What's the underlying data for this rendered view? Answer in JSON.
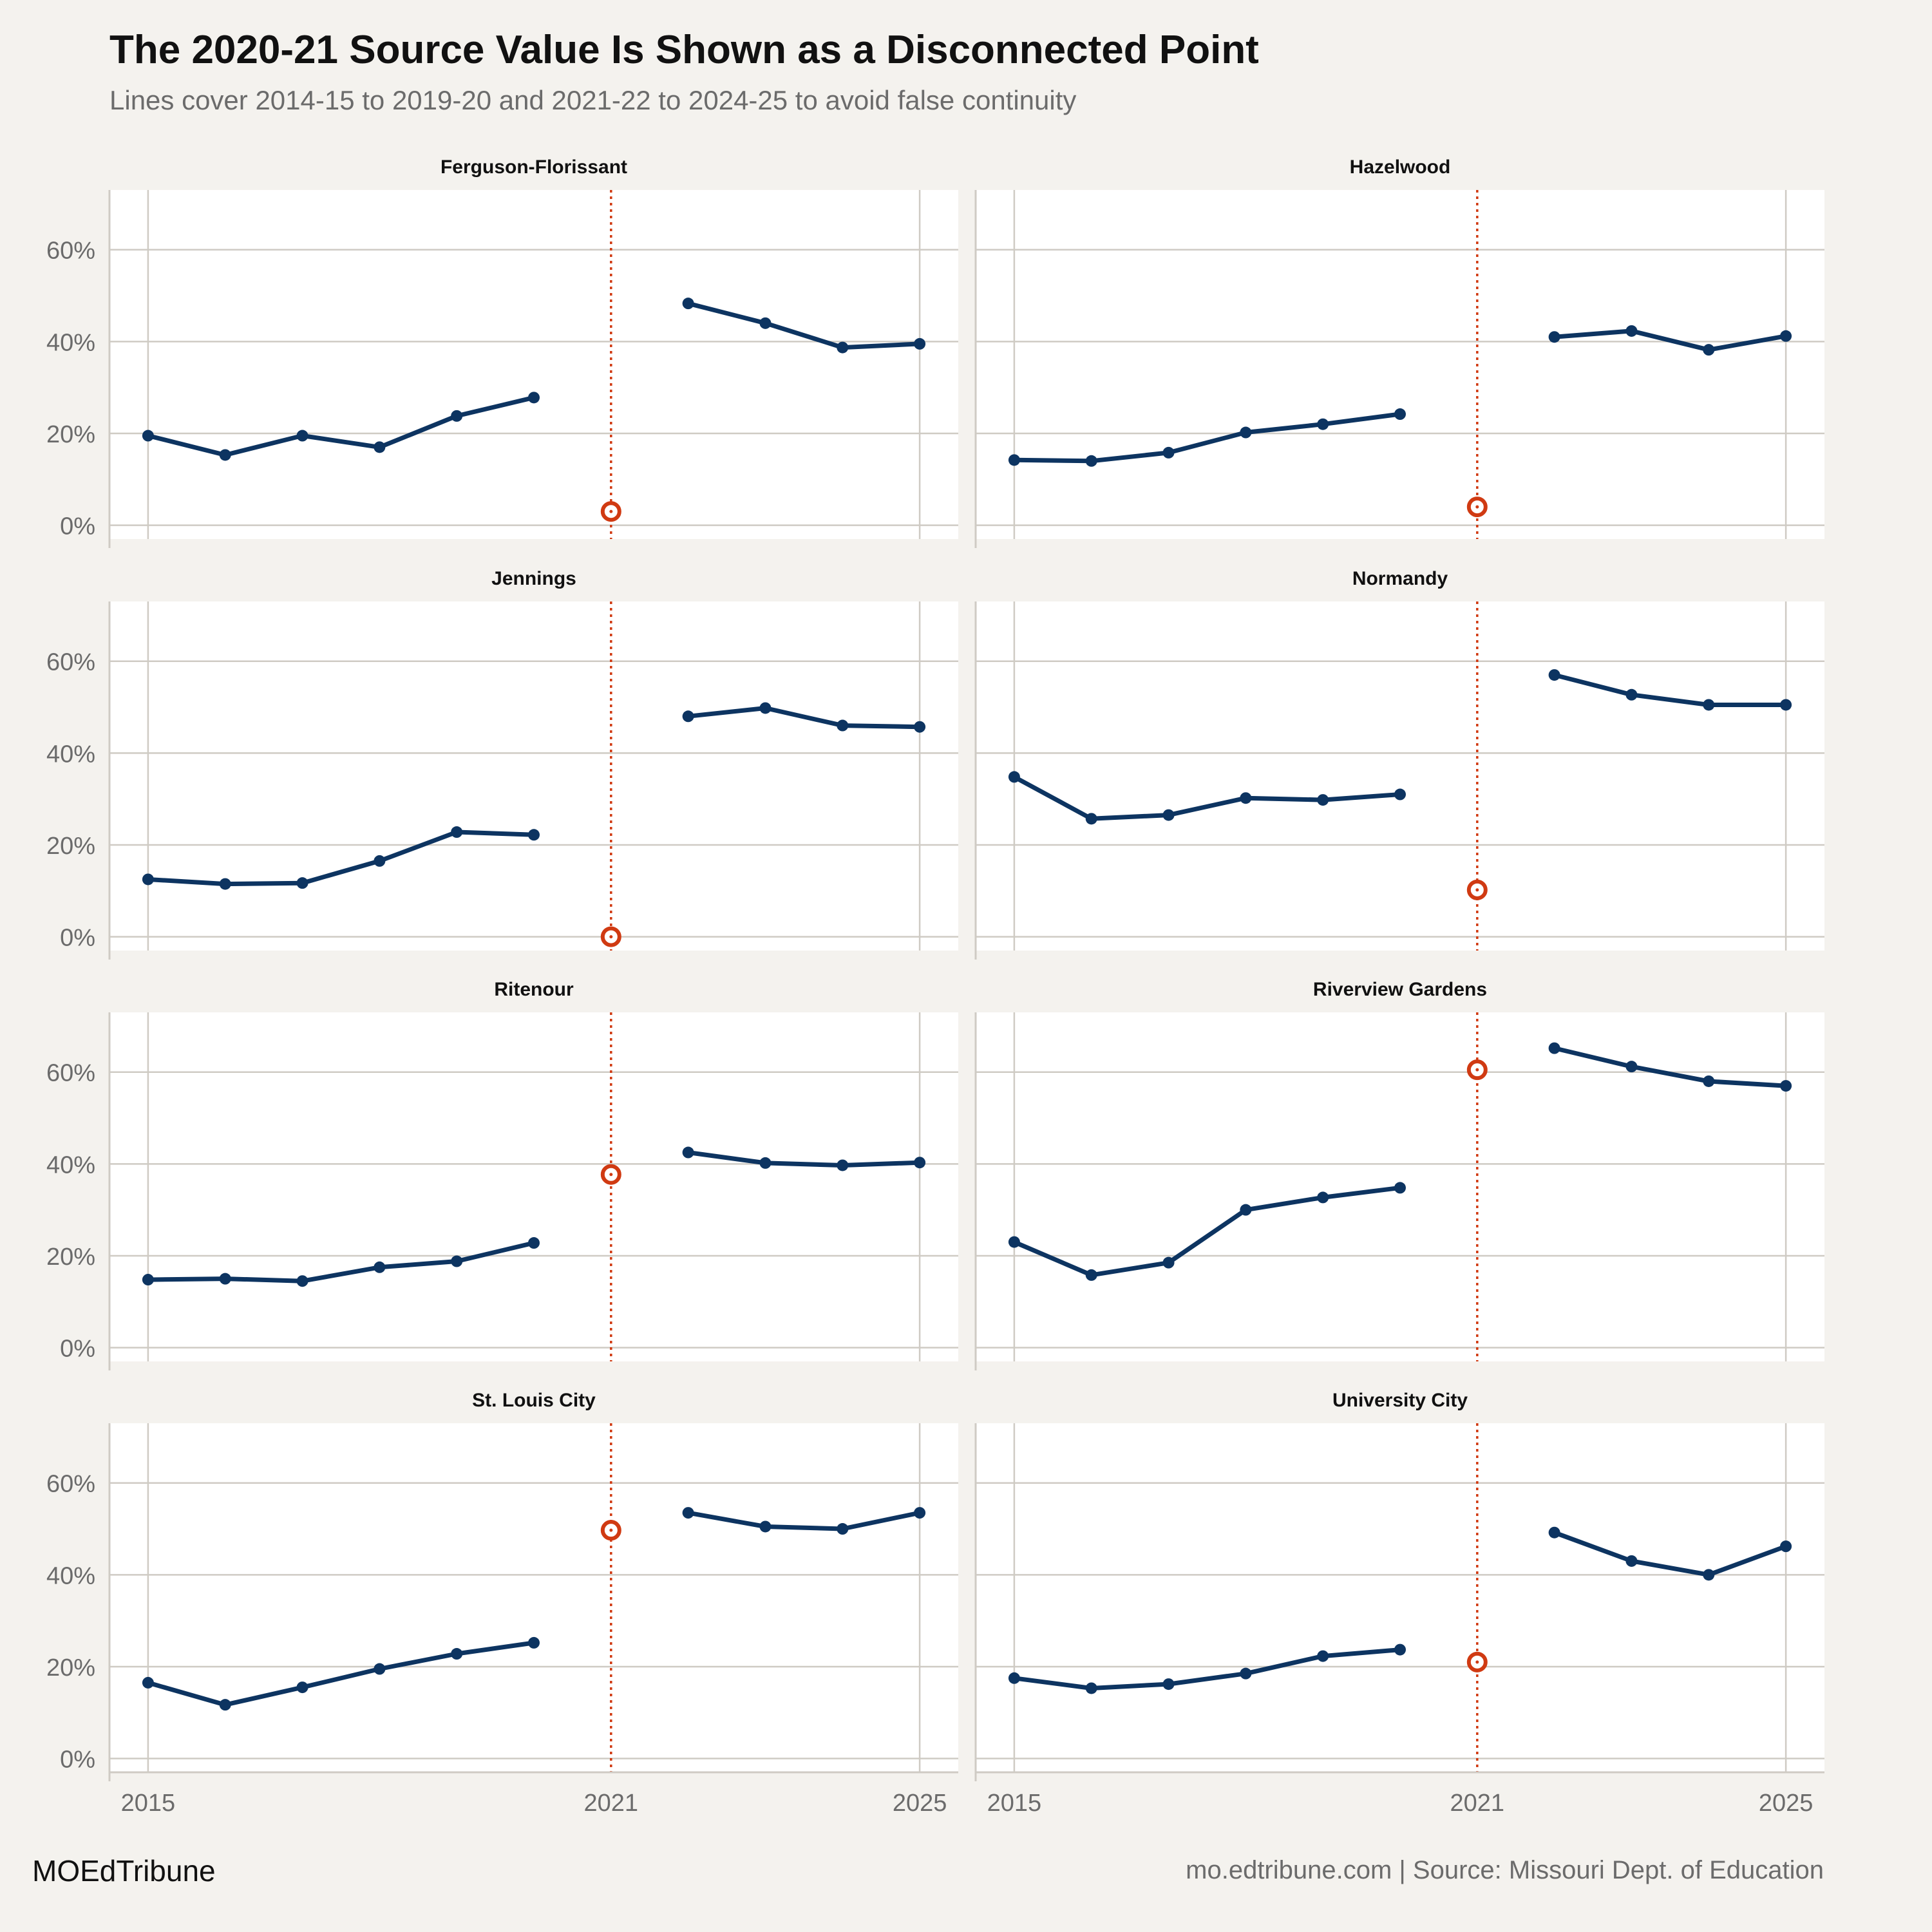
{
  "title": "The 2020-21 Source Value Is Shown as a Disconnected Point",
  "subtitle": "Lines cover 2014-15 to 2019-20 and 2021-22 to 2024-25 to avoid false continuity",
  "footer": {
    "brand": "MOEdTribune",
    "source": "mo.edtribune.com | Source: Missouri Dept. of Education"
  },
  "colors": {
    "background": "#f4f2ee",
    "panel": "#ffffff",
    "grid": "#cfcbc4",
    "line": "#0d3461",
    "highlight": "#d03a12"
  },
  "chart_data": {
    "type": "line",
    "facet_layout": "4 rows x 2 columns",
    "x": [
      2015,
      2016,
      2017,
      2018,
      2019,
      2020,
      2021,
      2022,
      2023,
      2024,
      2025
    ],
    "xlim": [
      2014.5,
      2025.5
    ],
    "x_tick_values": [
      2015,
      2021,
      2025
    ],
    "x_ticks": [
      "2015",
      "2021",
      "2025"
    ],
    "ylim": [
      -3,
      73
    ],
    "y_tick_values": [
      0,
      20,
      40,
      60
    ],
    "y_ticks": [
      "0%",
      "20%",
      "40%",
      "60%"
    ],
    "reference_line_x": 2021,
    "segments": [
      [
        2015,
        2020
      ],
      [
        2022,
        2025
      ]
    ],
    "highlight_x": 2021,
    "grid": true,
    "legend": "none",
    "panels": [
      {
        "name": "Ferguson-Florissant",
        "values": [
          19.5,
          15.3,
          19.5,
          17.0,
          23.8,
          27.8,
          3.0,
          48.3,
          44.0,
          38.7,
          39.5
        ]
      },
      {
        "name": "Hazelwood",
        "values": [
          14.2,
          14.0,
          15.8,
          20.2,
          22.0,
          24.2,
          4.0,
          41.0,
          42.3,
          38.2,
          41.2
        ]
      },
      {
        "name": "Jennings",
        "values": [
          12.5,
          11.5,
          11.7,
          16.5,
          22.8,
          22.2,
          0.0,
          48.0,
          49.8,
          46.0,
          45.7
        ]
      },
      {
        "name": "Normandy",
        "values": [
          34.8,
          25.7,
          26.5,
          30.2,
          29.8,
          31.0,
          10.2,
          57.0,
          52.7,
          50.5,
          50.5
        ]
      },
      {
        "name": "Ritenour",
        "values": [
          14.8,
          15.0,
          14.5,
          17.5,
          18.8,
          22.8,
          37.7,
          42.5,
          40.2,
          39.7,
          40.3
        ]
      },
      {
        "name": "Riverview Gardens",
        "values": [
          23.0,
          15.8,
          18.5,
          30.0,
          32.7,
          34.8,
          60.5,
          65.2,
          61.2,
          58.0,
          57.0
        ]
      },
      {
        "name": "St. Louis City",
        "values": [
          16.5,
          11.7,
          15.5,
          19.5,
          22.8,
          25.2,
          49.7,
          53.5,
          50.5,
          50.0,
          53.5
        ]
      },
      {
        "name": "University City",
        "values": [
          17.5,
          15.3,
          16.2,
          18.5,
          22.3,
          23.7,
          21.0,
          49.2,
          43.0,
          40.0,
          46.2
        ]
      }
    ]
  }
}
